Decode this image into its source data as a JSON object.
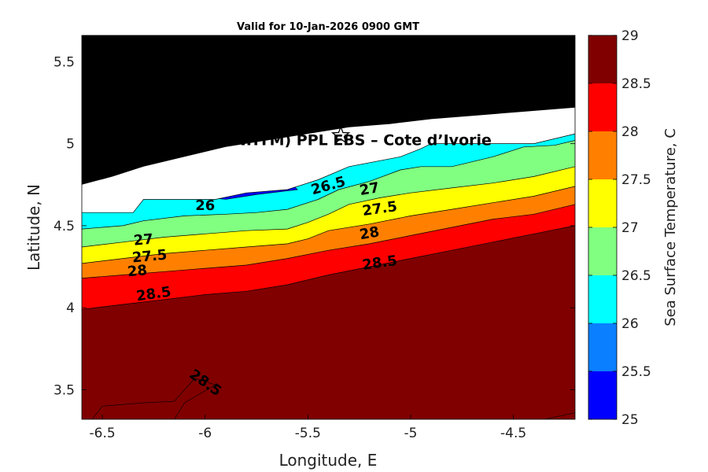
{
  "chart_data": {
    "type": "heatmap",
    "title": "Valid for 10-Jan-2026 0900 GMT",
    "xlabel": "Longitude, E",
    "ylabel": "Latitude, N",
    "xlim": [
      -6.6,
      -4.2
    ],
    "ylim": [
      3.32,
      5.66
    ],
    "x_ticks": [
      -6.5,
      -6,
      -5.5,
      -5,
      -4.5
    ],
    "x_tick_labels": [
      "-6.5",
      "-6",
      "-5.5",
      "-5",
      "-4.5"
    ],
    "y_ticks": [
      3.5,
      4,
      4.5,
      5,
      5.5
    ],
    "y_tick_labels": [
      "3.5",
      "4",
      "4.5",
      "5",
      "5.5"
    ],
    "grid": false,
    "annotation": {
      "text": "RA (ONHYM) PPL EBS  – Cote d’Ivorie",
      "x": -5.35,
      "y": 4.99
    },
    "marker": {
      "shape": "star",
      "lon": -5.34,
      "lat": 5.05
    },
    "colorbar": {
      "label": "Sea Surface Temperature, C",
      "min": 25,
      "max": 29,
      "ticks": [
        25,
        25.5,
        26,
        26.5,
        27,
        27.5,
        28,
        28.5,
        29
      ],
      "tick_labels": [
        "25",
        "25.5",
        "26",
        "26.5",
        "27",
        "27.5",
        "28",
        "28.5",
        "29"
      ],
      "bands": [
        {
          "from": 25,
          "to": 25.5,
          "color": "#0000ff"
        },
        {
          "from": 25.5,
          "to": 26,
          "color": "#0a7fff"
        },
        {
          "from": 26,
          "to": 26.5,
          "color": "#00ffff"
        },
        {
          "from": 26.5,
          "to": 27,
          "color": "#80ff80"
        },
        {
          "from": 27,
          "to": 27.5,
          "color": "#ffff00"
        },
        {
          "from": 27.5,
          "to": 28,
          "color": "#ff8000"
        },
        {
          "from": 28,
          "to": 28.5,
          "color": "#ff0000"
        },
        {
          "from": 28.5,
          "to": 29,
          "color": "#800000"
        }
      ]
    },
    "land": {
      "color": "#000000",
      "coast": [
        [
          -6.6,
          4.75
        ],
        [
          -6.45,
          4.8
        ],
        [
          -6.3,
          4.86
        ],
        [
          -6.1,
          4.92
        ],
        [
          -5.9,
          4.98
        ],
        [
          -5.7,
          5.02
        ],
        [
          -5.5,
          5.06
        ],
        [
          -5.3,
          5.1
        ],
        [
          -5.1,
          5.12
        ],
        [
          -4.9,
          5.15
        ],
        [
          -4.7,
          5.17
        ],
        [
          -4.5,
          5.19
        ],
        [
          -4.2,
          5.22
        ]
      ]
    },
    "nodata": {
      "color": "#ffffff",
      "edge": [
        [
          -6.6,
          4.58
        ],
        [
          -6.35,
          4.58
        ],
        [
          -6.3,
          4.66
        ],
        [
          -5.95,
          4.66
        ],
        [
          -5.8,
          4.7
        ],
        [
          -5.6,
          4.72
        ],
        [
          -5.45,
          4.78
        ],
        [
          -5.3,
          4.86
        ],
        [
          -5.05,
          4.92
        ],
        [
          -4.95,
          4.97
        ],
        [
          -4.9,
          5.0
        ],
        [
          -4.4,
          5.0
        ],
        [
          -4.2,
          5.06
        ]
      ]
    },
    "isotherms": [
      {
        "level": 26,
        "line": [
          [
            -6.6,
            4.58
          ],
          [
            -6.35,
            4.58
          ],
          [
            -6.3,
            4.66
          ],
          [
            -5.95,
            4.66
          ],
          [
            -5.8,
            4.7
          ],
          [
            -5.6,
            4.72
          ],
          [
            -5.45,
            4.78
          ],
          [
            -5.3,
            4.86
          ],
          [
            -5.05,
            4.92
          ],
          [
            -4.95,
            4.97
          ],
          [
            -4.9,
            5.0
          ],
          [
            -4.4,
            5.0
          ],
          [
            -4.2,
            5.06
          ]
        ]
      },
      {
        "level": 26.5,
        "line": [
          [
            -6.6,
            4.48
          ],
          [
            -6.4,
            4.5
          ],
          [
            -6.3,
            4.53
          ],
          [
            -6.1,
            4.56
          ],
          [
            -5.9,
            4.57
          ],
          [
            -5.75,
            4.58
          ],
          [
            -5.6,
            4.6
          ],
          [
            -5.45,
            4.66
          ],
          [
            -5.35,
            4.72
          ],
          [
            -5.2,
            4.77
          ],
          [
            -5.05,
            4.84
          ],
          [
            -4.95,
            4.86
          ],
          [
            -4.8,
            4.86
          ],
          [
            -4.6,
            4.92
          ],
          [
            -4.45,
            4.98
          ],
          [
            -4.3,
            4.99
          ],
          [
            -4.2,
            5.02
          ]
        ]
      },
      {
        "level": 27,
        "line": [
          [
            -6.6,
            4.37
          ],
          [
            -6.4,
            4.4
          ],
          [
            -6.2,
            4.43
          ],
          [
            -6.0,
            4.45
          ],
          [
            -5.8,
            4.47
          ],
          [
            -5.6,
            4.48
          ],
          [
            -5.5,
            4.52
          ],
          [
            -5.4,
            4.57
          ],
          [
            -5.3,
            4.63
          ],
          [
            -5.15,
            4.67
          ],
          [
            -5.0,
            4.7
          ],
          [
            -4.8,
            4.73
          ],
          [
            -4.6,
            4.76
          ],
          [
            -4.4,
            4.8
          ],
          [
            -4.2,
            4.86
          ]
        ]
      },
      {
        "level": 27.5,
        "line": [
          [
            -6.6,
            4.27
          ],
          [
            -6.4,
            4.3
          ],
          [
            -6.2,
            4.33
          ],
          [
            -6.0,
            4.35
          ],
          [
            -5.8,
            4.37
          ],
          [
            -5.6,
            4.39
          ],
          [
            -5.5,
            4.42
          ],
          [
            -5.4,
            4.47
          ],
          [
            -5.2,
            4.51
          ],
          [
            -5.0,
            4.56
          ],
          [
            -4.8,
            4.6
          ],
          [
            -4.6,
            4.64
          ],
          [
            -4.4,
            4.68
          ],
          [
            -4.2,
            4.74
          ]
        ]
      },
      {
        "level": 28,
        "line": [
          [
            -6.6,
            4.18
          ],
          [
            -6.4,
            4.2
          ],
          [
            -6.2,
            4.22
          ],
          [
            -6.0,
            4.24
          ],
          [
            -5.8,
            4.26
          ],
          [
            -5.6,
            4.3
          ],
          [
            -5.4,
            4.35
          ],
          [
            -5.2,
            4.39
          ],
          [
            -5.0,
            4.44
          ],
          [
            -4.8,
            4.49
          ],
          [
            -4.6,
            4.54
          ],
          [
            -4.4,
            4.57
          ],
          [
            -4.2,
            4.63
          ]
        ]
      },
      {
        "level": 28.5,
        "line": [
          [
            -6.6,
            3.99
          ],
          [
            -6.4,
            4.02
          ],
          [
            -6.2,
            4.05
          ],
          [
            -6.0,
            4.08
          ],
          [
            -5.8,
            4.1
          ],
          [
            -5.6,
            4.14
          ],
          [
            -5.4,
            4.2
          ],
          [
            -5.2,
            4.25
          ],
          [
            -5.0,
            4.3
          ],
          [
            -4.8,
            4.35
          ],
          [
            -4.6,
            4.4
          ],
          [
            -4.4,
            4.45
          ],
          [
            -4.2,
            4.5
          ]
        ]
      }
    ],
    "warm_pockets": [
      {
        "level": 29,
        "polygon": [
          [
            -6.55,
            3.32
          ],
          [
            -6.5,
            3.4
          ],
          [
            -6.3,
            3.42
          ],
          [
            -6.15,
            3.43
          ],
          [
            -6.05,
            3.57
          ],
          [
            -5.95,
            3.53
          ],
          [
            -6.1,
            3.42
          ],
          [
            -6.15,
            3.32
          ]
        ]
      },
      {
        "level": 29,
        "polygon": [
          [
            -4.35,
            3.32
          ],
          [
            -4.2,
            3.36
          ],
          [
            -4.2,
            3.32
          ]
        ]
      }
    ],
    "cool_pockets": [
      {
        "level": 25.5,
        "polygon": [
          [
            -6.05,
            4.68
          ],
          [
            -5.98,
            4.75
          ],
          [
            -5.75,
            4.8
          ],
          [
            -5.62,
            4.8
          ],
          [
            -5.55,
            4.72
          ],
          [
            -5.75,
            4.69
          ],
          [
            -5.9,
            4.66
          ]
        ]
      },
      {
        "level": 25.5,
        "polygon": [
          [
            -4.92,
            5.08
          ],
          [
            -4.85,
            5.08
          ],
          [
            -4.75,
            5.0
          ],
          [
            -4.9,
            5.01
          ]
        ]
      }
    ],
    "contour_labels": [
      {
        "text": "26",
        "x": -6.0,
        "y": 4.62,
        "angle": 0
      },
      {
        "text": "26.5",
        "x": -5.4,
        "y": 4.74,
        "angle": -15
      },
      {
        "text": "27",
        "x": -5.2,
        "y": 4.72,
        "angle": -10
      },
      {
        "text": "27.5",
        "x": -5.15,
        "y": 4.6,
        "angle": -8
      },
      {
        "text": "28",
        "x": -5.2,
        "y": 4.45,
        "angle": -10
      },
      {
        "text": "28.5",
        "x": -5.15,
        "y": 4.27,
        "angle": -8
      },
      {
        "text": "27",
        "x": -6.3,
        "y": 4.41,
        "angle": -5
      },
      {
        "text": "27.5",
        "x": -6.27,
        "y": 4.31,
        "angle": -5
      },
      {
        "text": "28",
        "x": -6.33,
        "y": 4.22,
        "angle": -5
      },
      {
        "text": "28.5",
        "x": -6.25,
        "y": 4.08,
        "angle": -8
      },
      {
        "text": "28.5",
        "x": -6.0,
        "y": 3.54,
        "angle": 35
      }
    ]
  }
}
